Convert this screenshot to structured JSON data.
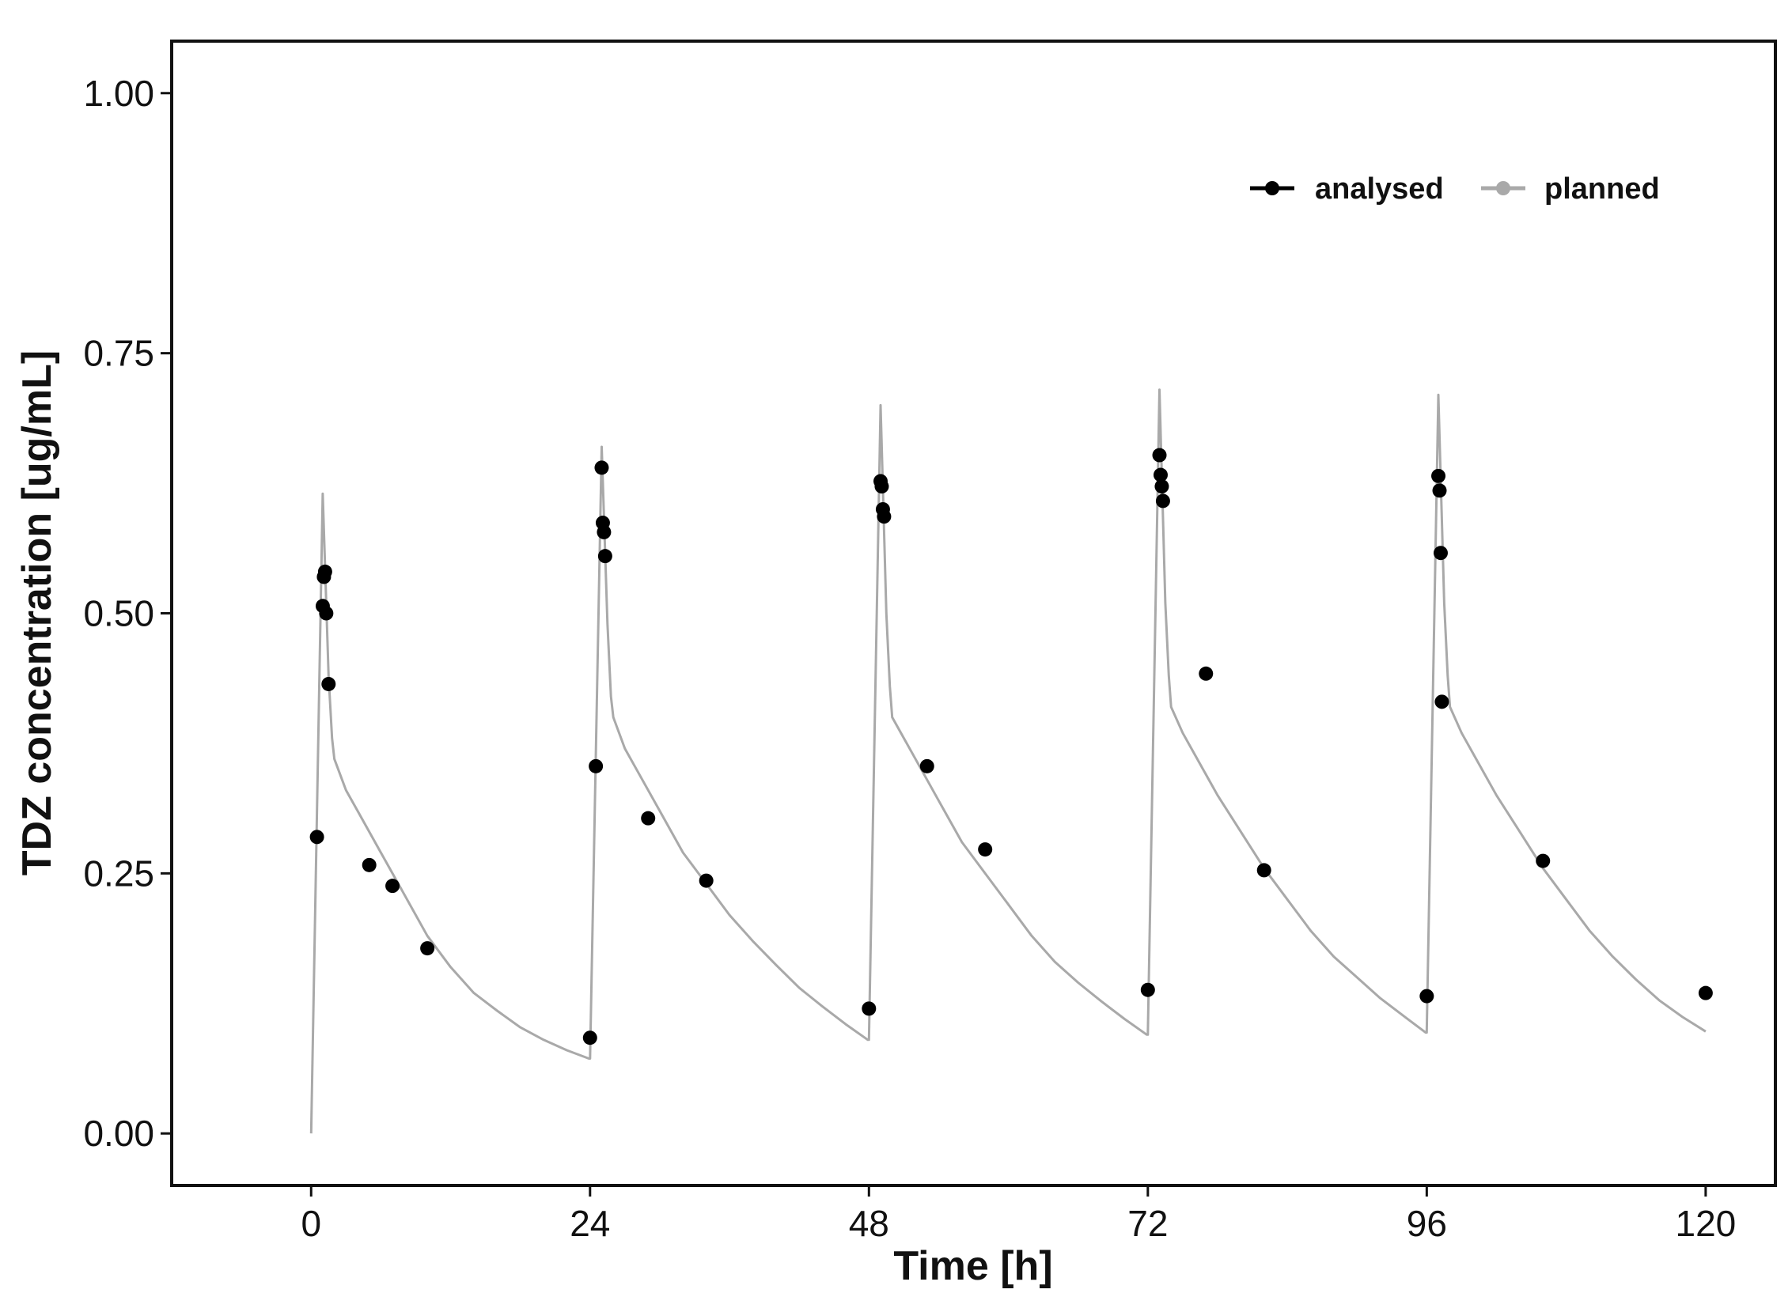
{
  "chart_data": {
    "type": "line+scatter",
    "title": "",
    "xlabel": "Time [h]",
    "ylabel": "TDZ concentration [ug/mL]",
    "xlim": [
      -12,
      126
    ],
    "ylim": [
      -0.05,
      1.05
    ],
    "xticks": [
      0,
      24,
      48,
      72,
      96,
      120
    ],
    "xtick_labels": [
      "0",
      "24",
      "48",
      "72",
      "96",
      "120"
    ],
    "yticks": [
      0,
      0.25,
      0.5,
      0.75,
      1.0
    ],
    "ytick_labels": [
      "0.00",
      "0.25",
      "0.50",
      "0.75",
      "1.00"
    ],
    "grid": false,
    "legend": {
      "position": "top-right",
      "entries": [
        {
          "name": "analysed",
          "color": "#000000"
        },
        {
          "name": "planned",
          "color": "#a9a9a9"
        }
      ]
    },
    "series": [
      {
        "name": "planned",
        "kind": "line",
        "color": "#a9a9a9",
        "x": [
          0,
          1.0,
          1.5,
          1.8,
          2,
          3,
          4,
          6,
          8,
          10,
          12,
          14,
          16,
          18,
          20,
          22,
          23.9,
          24,
          25.0,
          25.5,
          25.8,
          26,
          27,
          28,
          30,
          32,
          34,
          36,
          38,
          40,
          42,
          44,
          46,
          47.9,
          48,
          49.0,
          49.5,
          49.8,
          50,
          51,
          52,
          54,
          56,
          58,
          60,
          62,
          64,
          66,
          68,
          70,
          71.9,
          72,
          73.0,
          73.5,
          73.8,
          74,
          75,
          76,
          78,
          80,
          82,
          84,
          86,
          88,
          90,
          92,
          94,
          95.9,
          96,
          97.0,
          97.5,
          97.8,
          98,
          99,
          100,
          102,
          104,
          106,
          108,
          110,
          112,
          114,
          116,
          118,
          120
        ],
        "values": [
          0.0,
          0.615,
          0.44,
          0.38,
          0.36,
          0.33,
          0.31,
          0.27,
          0.23,
          0.19,
          0.16,
          0.135,
          0.118,
          0.102,
          0.09,
          0.08,
          0.072,
          0.072,
          0.66,
          0.49,
          0.42,
          0.4,
          0.37,
          0.35,
          0.31,
          0.27,
          0.24,
          0.21,
          0.185,
          0.162,
          0.14,
          0.122,
          0.105,
          0.09,
          0.09,
          0.7,
          0.5,
          0.43,
          0.4,
          0.38,
          0.36,
          0.32,
          0.28,
          0.25,
          0.22,
          0.19,
          0.165,
          0.145,
          0.127,
          0.11,
          0.095,
          0.095,
          0.715,
          0.51,
          0.44,
          0.41,
          0.385,
          0.365,
          0.325,
          0.29,
          0.255,
          0.225,
          0.195,
          0.17,
          0.15,
          0.13,
          0.113,
          0.097,
          0.097,
          0.71,
          0.51,
          0.44,
          0.41,
          0.385,
          0.365,
          0.325,
          0.29,
          0.255,
          0.225,
          0.195,
          0.17,
          0.148,
          0.128,
          0.112,
          0.098
        ]
      },
      {
        "name": "analysed",
        "kind": "scatter",
        "color": "#000000",
        "x": [
          0.5,
          1.0,
          1.1,
          1.2,
          1.3,
          1.5,
          5,
          7,
          10,
          24,
          24.5,
          25,
          25.1,
          25.2,
          25.3,
          29,
          34,
          48,
          49.0,
          49.1,
          49.2,
          49.3,
          53,
          58,
          72,
          73.0,
          73.1,
          73.2,
          73.3,
          77,
          82,
          96,
          97.0,
          97.1,
          97.2,
          97.3,
          106,
          120
        ],
        "values": [
          0.285,
          0.507,
          0.535,
          0.54,
          0.5,
          0.432,
          0.258,
          0.238,
          0.178,
          0.092,
          0.353,
          0.64,
          0.587,
          0.578,
          0.555,
          0.303,
          0.243,
          0.12,
          0.627,
          0.622,
          0.6,
          0.593,
          0.353,
          0.273,
          0.138,
          0.652,
          0.633,
          0.622,
          0.608,
          0.442,
          0.253,
          0.132,
          0.632,
          0.618,
          0.558,
          0.415,
          0.262,
          0.135
        ]
      }
    ]
  }
}
